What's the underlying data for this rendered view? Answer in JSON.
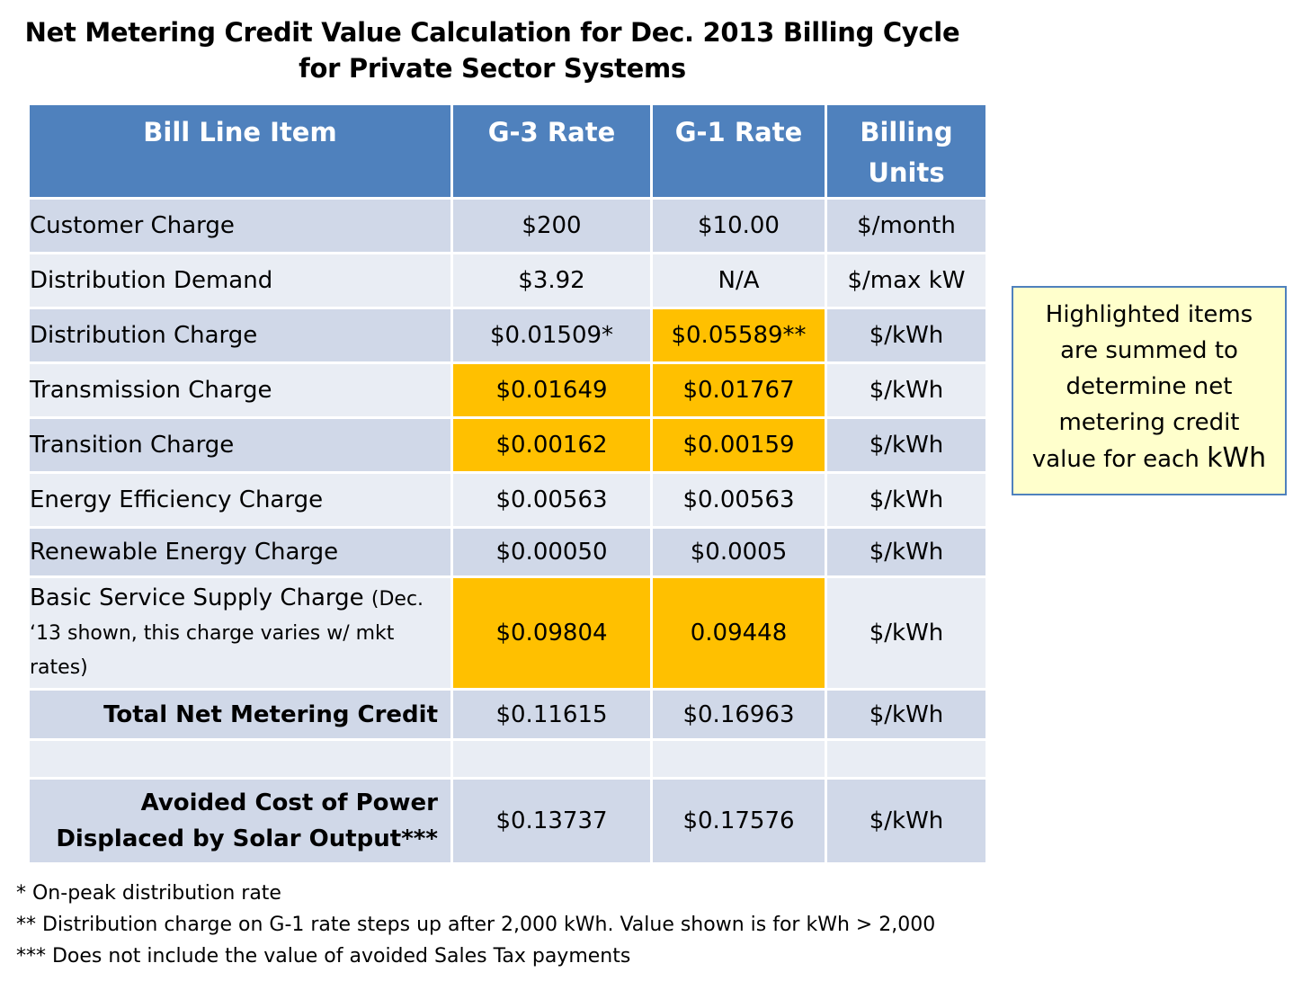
{
  "title": {
    "line1": "Net Metering Credit Value Calculation for Dec. 2013 Billing Cycle",
    "line2": "for Private Sector Systems"
  },
  "table": {
    "headers": [
      "Bill Line Item",
      "G-3 Rate",
      "G-1 Rate",
      "Billing Units"
    ],
    "header_units_line1": "Billing",
    "header_units_line2": "Units",
    "rows": [
      {
        "item": "Customer Charge",
        "g3": "$200",
        "g1": "$10.00",
        "units": "$/month"
      },
      {
        "item": "Distribution Demand",
        "g3": "$3.92",
        "g1": "N/A",
        "units": "$/max kW"
      },
      {
        "item": "Distribution Charge",
        "g3": "$0.01509*",
        "g1": "$0.05589**",
        "units": "$/kWh"
      },
      {
        "item": "Transmission Charge",
        "g3": "$0.01649",
        "g1": "$0.01767",
        "units": "$/kWh"
      },
      {
        "item": "Transition Charge",
        "g3": "$0.00162",
        "g1": "$0.00159",
        "units": "$/kWh"
      },
      {
        "item": "Energy Efficiency Charge",
        "g3": "$0.00563",
        "g1": "$0.00563",
        "units": "$/kWh"
      },
      {
        "item": "Renewable Energy Charge",
        "g3": "$0.00050",
        "g1": "$0.0005",
        "units": "$/kWh"
      },
      {
        "item": "Basic Service Supply Charge",
        "item_note": "(Dec. ‘13 shown, this charge varies w/ mkt rates)",
        "g3": "$0.09804",
        "g1": "0.09448",
        "units": "$/kWh"
      }
    ],
    "total": {
      "item": "Total Net Metering Credit",
      "g3": "$0.11615",
      "g1": "$0.16963",
      "units": "$/kWh"
    },
    "avoided": {
      "item_line1": "Avoided Cost of Power",
      "item_line2": "Displaced by Solar Output***",
      "g3": "$0.13737",
      "g1": "$0.17576",
      "units": "$/kWh"
    },
    "highlight_color": "#ffc000",
    "header_color": "#4f81bd"
  },
  "callout": {
    "line1": "Highlighted items",
    "line2": "are summed to",
    "line3": "determine net",
    "line4": "metering credit",
    "line5a": "value for each",
    "line5b": "kWh"
  },
  "footnotes": [
    "* On-peak distribution rate",
    "** Distribution charge on G-1 rate steps up after 2,000 kWh. Value shown is for kWh > 2,000",
    "*** Does not include the value of avoided Sales Tax payments"
  ]
}
